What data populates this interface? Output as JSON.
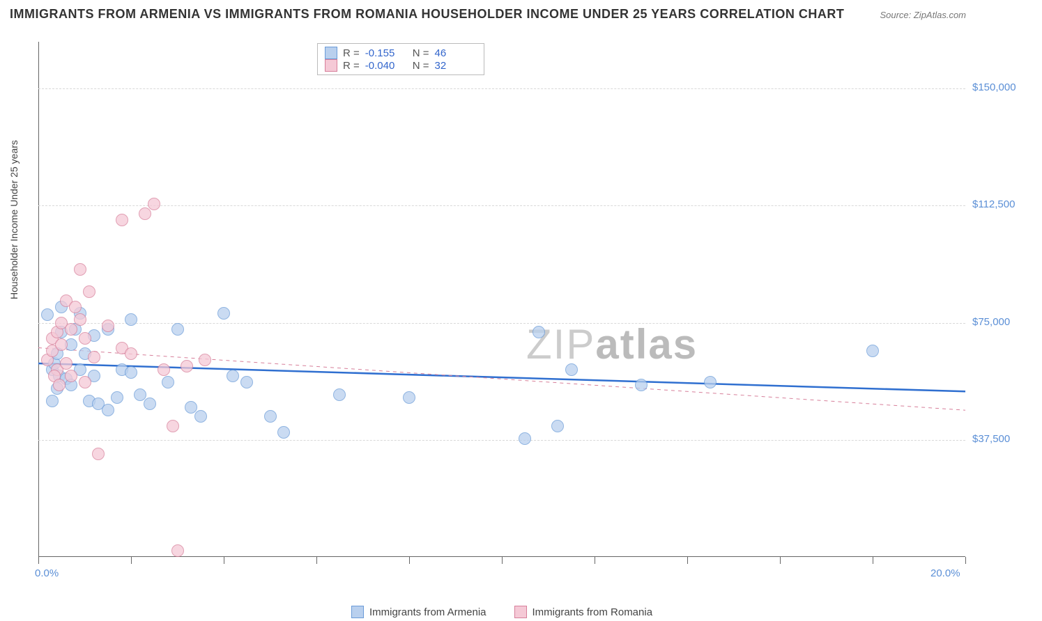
{
  "title": "IMMIGRANTS FROM ARMENIA VS IMMIGRANTS FROM ROMANIA HOUSEHOLDER INCOME UNDER 25 YEARS CORRELATION CHART",
  "source": "Source: ZipAtlas.com",
  "ylabel": "Householder Income Under 25 years",
  "watermark_thin": "ZIP",
  "watermark_bold": "atlas",
  "chart": {
    "type": "scatter",
    "xlim": [
      0,
      20
    ],
    "ylim": [
      0,
      165000
    ],
    "xticks": [
      0,
      2,
      4,
      6,
      8,
      10,
      12,
      14,
      16,
      18,
      20
    ],
    "xlabels": {
      "0": "0.0%",
      "20": "20.0%"
    },
    "yticks": [
      37500,
      75000,
      112500,
      150000
    ],
    "ylabels": {
      "37500": "$37,500",
      "75000": "$75,000",
      "112500": "$112,500",
      "150000": "$150,000"
    },
    "grid_color": "#d8d8d8",
    "axis_color": "#666666",
    "background_color": "#ffffff"
  },
  "series": [
    {
      "name": "Immigrants from Armenia",
      "fill": "#b9d0ee",
      "stroke": "#6a9bd8",
      "marker_radius": 9,
      "R_label": "R =",
      "R": "-0.155",
      "N_label": "N =",
      "N": "46",
      "trend": {
        "y_at_x0": 62000,
        "y_at_xmax": 53000,
        "color": "#2f6fd0",
        "width": 2.5,
        "dash": "none"
      },
      "points": [
        [
          0.2,
          77500
        ],
        [
          0.3,
          60000
        ],
        [
          0.35,
          62000
        ],
        [
          0.4,
          65000
        ],
        [
          0.45,
          58000
        ],
        [
          0.5,
          80000
        ],
        [
          0.5,
          72000
        ],
        [
          0.6,
          57000
        ],
        [
          0.7,
          68000
        ],
        [
          0.7,
          55000
        ],
        [
          0.8,
          73000
        ],
        [
          0.9,
          60000
        ],
        [
          0.9,
          78000
        ],
        [
          1.0,
          65000
        ],
        [
          1.1,
          50000
        ],
        [
          1.2,
          71000
        ],
        [
          1.2,
          58000
        ],
        [
          1.3,
          49000
        ],
        [
          1.5,
          47000
        ],
        [
          1.5,
          73000
        ],
        [
          1.7,
          51000
        ],
        [
          1.8,
          60000
        ],
        [
          2.0,
          76000
        ],
        [
          2.0,
          59000
        ],
        [
          2.2,
          52000
        ],
        [
          2.4,
          49000
        ],
        [
          2.8,
          56000
        ],
        [
          3.0,
          73000
        ],
        [
          3.3,
          48000
        ],
        [
          3.5,
          45000
        ],
        [
          4.0,
          78000
        ],
        [
          4.2,
          58000
        ],
        [
          4.5,
          56000
        ],
        [
          5.0,
          45000
        ],
        [
          5.3,
          40000
        ],
        [
          6.5,
          52000
        ],
        [
          8.0,
          51000
        ],
        [
          10.5,
          38000
        ],
        [
          10.8,
          72000
        ],
        [
          11.2,
          42000
        ],
        [
          11.5,
          60000
        ],
        [
          13.0,
          55000
        ],
        [
          14.5,
          56000
        ],
        [
          18.0,
          66000
        ],
        [
          0.3,
          50000
        ],
        [
          0.4,
          54000
        ]
      ]
    },
    {
      "name": "Immigrants from Romania",
      "fill": "#f5c9d6",
      "stroke": "#d77f9a",
      "marker_radius": 9,
      "R_label": "R =",
      "R": "-0.040",
      "N_label": "N =",
      "N": "32",
      "trend": {
        "y_at_x0": 67000,
        "y_at_xmax": 47000,
        "color": "#d77f9a",
        "width": 1,
        "dash": "5,5"
      },
      "points": [
        [
          0.2,
          63000
        ],
        [
          0.3,
          66000
        ],
        [
          0.3,
          70000
        ],
        [
          0.4,
          60000
        ],
        [
          0.4,
          72000
        ],
        [
          0.5,
          68000
        ],
        [
          0.5,
          75000
        ],
        [
          0.6,
          62000
        ],
        [
          0.6,
          82000
        ],
        [
          0.7,
          58000
        ],
        [
          0.7,
          73000
        ],
        [
          0.8,
          80000
        ],
        [
          0.9,
          76000
        ],
        [
          0.9,
          92000
        ],
        [
          1.0,
          70000
        ],
        [
          1.0,
          56000
        ],
        [
          1.1,
          85000
        ],
        [
          1.2,
          64000
        ],
        [
          1.3,
          33000
        ],
        [
          1.5,
          74000
        ],
        [
          1.8,
          67000
        ],
        [
          1.8,
          108000
        ],
        [
          2.0,
          65000
        ],
        [
          2.3,
          110000
        ],
        [
          2.5,
          113000
        ],
        [
          2.7,
          60000
        ],
        [
          2.9,
          42000
        ],
        [
          3.2,
          61000
        ],
        [
          3.6,
          63000
        ],
        [
          3.0,
          2000
        ],
        [
          0.35,
          58000
        ],
        [
          0.45,
          55000
        ]
      ]
    }
  ]
}
